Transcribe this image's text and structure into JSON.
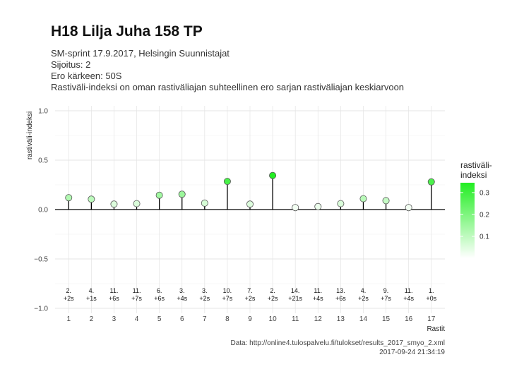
{
  "header": {
    "title": "H18 Lilja Juha 158 TP",
    "subtitle_lines": [
      "SM-sprint 17.9.2017, Helsingin Suunnistajat",
      "Sijoitus: 2",
      "Ero kärkeen: 50S",
      "Rastiväli-indeksi on oman rastiväliajan suhteellinen ero sarjan rastiväliajan keskiarvoon"
    ]
  },
  "caption": {
    "source": "Data: http://online4.tulospalvelu.fi/tulokset/results_2017_smyo_2.xml",
    "timestamp": "2017-09-24 21:34:19"
  },
  "chart_data": {
    "type": "lollipop",
    "xlabel": "Rastit",
    "ylabel": "rastiväli-indeksi",
    "ylim": [
      -1.05,
      1.05
    ],
    "yticks": [
      -1.0,
      -0.5,
      0.0,
      0.5,
      1.0
    ],
    "ytick_labels": [
      "−1.0",
      "−0.5",
      "0.0",
      "0.5",
      "1.0"
    ],
    "x": [
      1,
      2,
      3,
      4,
      5,
      6,
      7,
      8,
      9,
      10,
      11,
      12,
      13,
      14,
      15,
      16,
      17
    ],
    "values": [
      0.12,
      0.105,
      0.055,
      0.06,
      0.145,
      0.155,
      0.065,
      0.285,
      0.055,
      0.345,
      0.02,
      0.03,
      0.06,
      0.11,
      0.09,
      0.02,
      0.28
    ],
    "leg_rank": [
      "2.",
      "4.",
      "11.",
      "11.",
      "6.",
      "3.",
      "3.",
      "10.",
      "7.",
      "2.",
      "14.",
      "11.",
      "13.",
      "4.",
      "9.",
      "11.",
      "1."
    ],
    "leg_gap": [
      "+2s",
      "+1s",
      "+6s",
      "+7s",
      "+6s",
      "+4s",
      "+2s",
      "+7s",
      "+2s",
      "+2s",
      "+21s",
      "+4s",
      "+6s",
      "+2s",
      "+7s",
      "+4s",
      "+0s"
    ],
    "grid": true,
    "legend": {
      "title": "rastiväli-\nindeksi",
      "title_lines": [
        "rastiväli-",
        "indeksi"
      ],
      "position": "right",
      "breaks": [
        0.1,
        0.2,
        0.3
      ],
      "break_labels": [
        "0.1",
        "0.2",
        "0.3"
      ],
      "range": [
        0.0,
        0.345
      ],
      "color_low": "#ffffff",
      "color_high": "#22ee22"
    }
  }
}
